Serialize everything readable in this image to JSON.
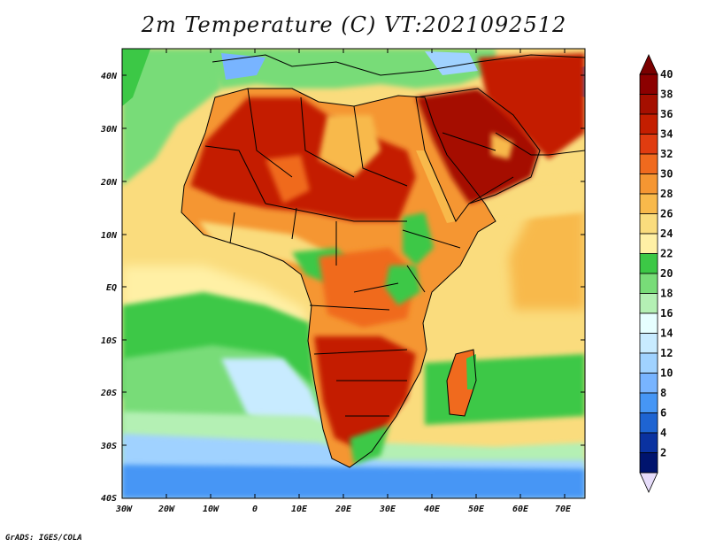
{
  "title": "2m Temperature (C) VT:2021092512",
  "map": {
    "lat_labels": [
      "40N",
      "30N",
      "20N",
      "10N",
      "EQ",
      "10S",
      "20S",
      "30S",
      "40S"
    ],
    "lon_labels": [
      "30W",
      "20W",
      "10W",
      "0",
      "10E",
      "20E",
      "30E",
      "40E",
      "50E",
      "60E",
      "70E"
    ]
  },
  "colorbar": {
    "levels": [
      "40",
      "38",
      "36",
      "34",
      "32",
      "30",
      "28",
      "26",
      "24",
      "22",
      "20",
      "18",
      "16",
      "14",
      "12",
      "10",
      "8",
      "6",
      "4",
      "2"
    ],
    "colors": [
      "#8c0000",
      "#a50f00",
      "#c41e00",
      "#e03c10",
      "#f06a1e",
      "#f59632",
      "#f8b94b",
      "#fadc7d",
      "#fff0a5",
      "#3cc846",
      "#78dc78",
      "#b4f0b4",
      "#e6ffff",
      "#c8ebff",
      "#a0d2ff",
      "#78b4ff",
      "#4696f5",
      "#1e64d2",
      "#0a32a0",
      "#00146e"
    ],
    "top_color": "#7a0000",
    "bottom_color": "#e6dcfa"
  },
  "credit": "GrADS: IGES/COLA"
}
